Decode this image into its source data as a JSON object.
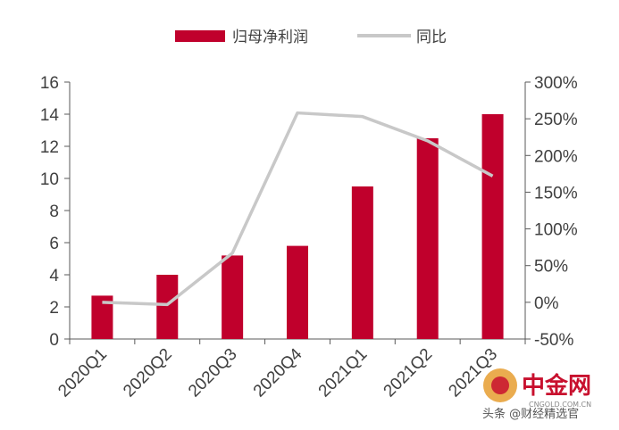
{
  "chart_data": {
    "type": "bar",
    "categories": [
      "2020Q1",
      "2020Q2",
      "2020Q3",
      "2020Q4",
      "2021Q1",
      "2021Q2",
      "2021Q3"
    ],
    "series": [
      {
        "name": "归母净利润",
        "kind": "bar",
        "axis": "left",
        "color": "#c0002c",
        "values": [
          2.7,
          4.0,
          5.2,
          5.8,
          9.5,
          12.5,
          14.0
        ]
      },
      {
        "name": "同比",
        "kind": "line",
        "axis": "right",
        "color": "#c8c8c8",
        "values": [
          0,
          -3,
          67,
          258,
          253,
          220,
          172
        ]
      }
    ],
    "y_left": {
      "ylim": [
        0,
        16
      ],
      "ticks": [
        "0",
        "2",
        "4",
        "6",
        "8",
        "10",
        "12",
        "14",
        "16"
      ]
    },
    "y_right": {
      "ylim": [
        -50,
        300
      ],
      "ticks": [
        "-50%",
        "0%",
        "50%",
        "100%",
        "150%",
        "200%",
        "250%",
        "300%"
      ]
    },
    "legend_position": "top",
    "grid": false
  },
  "watermark": {
    "logo_text": "中金网",
    "url_text": "CNGOLD.COM.CN",
    "caption": "头条 @财经精选官"
  }
}
